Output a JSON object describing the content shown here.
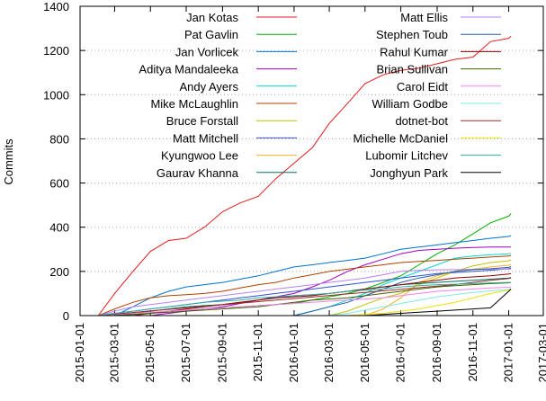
{
  "chart_data": {
    "type": "line",
    "y_label": "Commits",
    "x": [
      "2015-01-01",
      "2015-02-01",
      "2015-03-01",
      "2015-04-01",
      "2015-05-01",
      "2015-06-01",
      "2015-07-01",
      "2015-08-01",
      "2015-09-01",
      "2015-10-01",
      "2015-11-01",
      "2015-12-01",
      "2016-01-01",
      "2016-02-01",
      "2016-03-01",
      "2016-04-01",
      "2016-05-01",
      "2016-06-01",
      "2016-07-01",
      "2016-08-01",
      "2016-09-01",
      "2016-10-01",
      "2016-11-01",
      "2016-12-01",
      "2017-01-01",
      "2017-01-05"
    ],
    "xlim": [
      "2015-01-01",
      "2017-03-01"
    ],
    "xticks": [
      "2015-01-01",
      "2015-03-01",
      "2015-05-01",
      "2015-07-01",
      "2015-09-01",
      "2015-11-01",
      "2016-01-01",
      "2016-03-01",
      "2016-05-01",
      "2016-07-01",
      "2016-09-01",
      "2016-11-01",
      "2017-01-01",
      "2017-03-01"
    ],
    "ylim": [
      0,
      1400
    ],
    "yticks": [
      0,
      200,
      400,
      600,
      800,
      1000,
      1200,
      1400
    ],
    "grid": true,
    "series": [
      {
        "name": "Jan Kotas",
        "color": "#e41a1c",
        "values": [
          null,
          0,
          100,
          200,
          290,
          340,
          350,
          400,
          470,
          510,
          540,
          620,
          690,
          760,
          870,
          960,
          1050,
          1090,
          1110,
          1120,
          1140,
          1160,
          1170,
          1240,
          1255,
          1265
        ]
      },
      {
        "name": "Pat Gavlin",
        "color": "#00b000",
        "values": [
          null,
          null,
          0,
          5,
          10,
          20,
          25,
          30,
          35,
          40,
          45,
          50,
          55,
          70,
          85,
          100,
          120,
          150,
          180,
          230,
          280,
          320,
          370,
          420,
          450,
          462
        ]
      },
      {
        "name": "Jan Vorlicek",
        "color": "#0072d0",
        "values": [
          null,
          null,
          0,
          40,
          80,
          110,
          130,
          140,
          150,
          165,
          180,
          200,
          220,
          230,
          240,
          250,
          260,
          280,
          300,
          310,
          320,
          330,
          340,
          350,
          358,
          362
        ]
      },
      {
        "name": "Aditya Mandaleeka",
        "color": "#a000c0",
        "values": [
          null,
          null,
          null,
          null,
          0,
          10,
          20,
          30,
          40,
          55,
          70,
          85,
          100,
          130,
          160,
          200,
          230,
          255,
          280,
          295,
          300,
          305,
          308,
          310,
          310,
          310
        ]
      },
      {
        "name": "Andy Ayers",
        "color": "#00d8d8",
        "values": [
          null,
          null,
          null,
          null,
          null,
          null,
          null,
          null,
          null,
          null,
          null,
          null,
          0,
          20,
          40,
          70,
          100,
          140,
          170,
          200,
          230,
          260,
          270,
          275,
          280,
          282
        ]
      },
      {
        "name": "Mike McLaughlin",
        "color": "#b04000",
        "values": [
          null,
          0,
          30,
          60,
          80,
          90,
          95,
          100,
          110,
          125,
          140,
          150,
          170,
          185,
          200,
          210,
          220,
          230,
          240,
          245,
          250,
          255,
          260,
          265,
          270,
          272
        ]
      },
      {
        "name": "Bruce Forstall",
        "color": "#c0c000",
        "values": [
          null,
          null,
          null,
          null,
          null,
          null,
          null,
          null,
          null,
          null,
          null,
          null,
          null,
          null,
          0,
          20,
          50,
          80,
          100,
          140,
          170,
          200,
          225,
          240,
          248,
          252
        ]
      },
      {
        "name": "Matt Mitchell",
        "color": "#3050d0",
        "values": [
          null,
          0,
          10,
          20,
          30,
          40,
          50,
          60,
          70,
          80,
          90,
          100,
          110,
          120,
          130,
          140,
          150,
          160,
          170,
          180,
          190,
          195,
          200,
          205,
          212,
          215
        ]
      },
      {
        "name": "Kyungwoo Lee",
        "color": "#ffb020",
        "values": [
          null,
          null,
          null,
          null,
          null,
          null,
          null,
          null,
          null,
          null,
          null,
          null,
          null,
          null,
          null,
          null,
          0,
          30,
          80,
          150,
          180,
          200,
          210,
          220,
          228,
          232
        ]
      },
      {
        "name": "Gaurav Khanna",
        "color": "#007060",
        "values": [
          null,
          null,
          0,
          10,
          20,
          30,
          40,
          45,
          50,
          60,
          70,
          80,
          90,
          95,
          100,
          110,
          120,
          130,
          140,
          145,
          150,
          155,
          160,
          165,
          170,
          172
        ]
      },
      {
        "name": "Matt Ellis",
        "color": "#b880f0",
        "values": [
          null,
          0,
          20,
          40,
          50,
          60,
          70,
          80,
          90,
          100,
          110,
          120,
          130,
          140,
          150,
          160,
          170,
          185,
          200,
          205,
          207,
          208,
          209,
          210,
          210,
          210
        ]
      },
      {
        "name": "Stephen Toub",
        "color": "#2060a0",
        "values": [
          null,
          null,
          null,
          null,
          null,
          null,
          null,
          null,
          null,
          null,
          null,
          null,
          0,
          20,
          40,
          60,
          90,
          120,
          150,
          170,
          185,
          200,
          208,
          212,
          218,
          222
        ]
      },
      {
        "name": "Rahul Kumar",
        "color": "#900000",
        "values": [
          null,
          null,
          null,
          0,
          10,
          20,
          30,
          40,
          50,
          60,
          70,
          80,
          85,
          90,
          100,
          110,
          120,
          130,
          140,
          150,
          160,
          170,
          175,
          180,
          188,
          190
        ]
      },
      {
        "name": "Brian Sullivan",
        "color": "#406000",
        "values": [
          null,
          null,
          0,
          5,
          10,
          15,
          20,
          25,
          30,
          35,
          40,
          50,
          60,
          70,
          75,
          80,
          90,
          100,
          110,
          120,
          130,
          135,
          140,
          145,
          148,
          150
        ]
      },
      {
        "name": "Carol Eidt",
        "color": "#f080f0",
        "values": [
          null,
          0,
          5,
          10,
          15,
          20,
          25,
          30,
          35,
          40,
          45,
          50,
          55,
          60,
          65,
          70,
          75,
          80,
          90,
          100,
          110,
          115,
          120,
          125,
          128,
          130
        ]
      },
      {
        "name": "William Godbe",
        "color": "#80e8e0",
        "values": [
          null,
          null,
          null,
          null,
          null,
          null,
          null,
          null,
          null,
          null,
          null,
          null,
          null,
          null,
          0,
          10,
          25,
          40,
          55,
          70,
          85,
          95,
          105,
          112,
          118,
          120
        ]
      },
      {
        "name": "dotnet-bot",
        "color": "#a02828",
        "values": [
          null,
          0,
          7,
          14,
          21,
          28,
          35,
          42,
          49,
          56,
          63,
          70,
          77,
          84,
          91,
          98,
          105,
          112,
          119,
          126,
          133,
          140,
          150,
          160,
          168,
          170
        ]
      },
      {
        "name": "Michelle McDaniel",
        "color": "#f0e000",
        "values": [
          null,
          null,
          null,
          null,
          null,
          null,
          null,
          null,
          null,
          null,
          null,
          null,
          null,
          null,
          null,
          0,
          5,
          10,
          20,
          30,
          45,
          60,
          80,
          100,
          115,
          120
        ]
      },
      {
        "name": "Lubomir Litchev",
        "color": "#30b0a0",
        "values": [
          null,
          0,
          10,
          20,
          30,
          40,
          50,
          60,
          65,
          70,
          80,
          85,
          90,
          95,
          100,
          110,
          115,
          120,
          130,
          135,
          140,
          142,
          145,
          148,
          150,
          150
        ]
      },
      {
        "name": "Jonghyun Park",
        "color": "#000000",
        "values": [
          null,
          null,
          null,
          null,
          null,
          null,
          null,
          null,
          null,
          null,
          null,
          null,
          null,
          null,
          null,
          null,
          0,
          5,
          10,
          15,
          20,
          25,
          30,
          35,
          110,
          120
        ]
      }
    ]
  }
}
